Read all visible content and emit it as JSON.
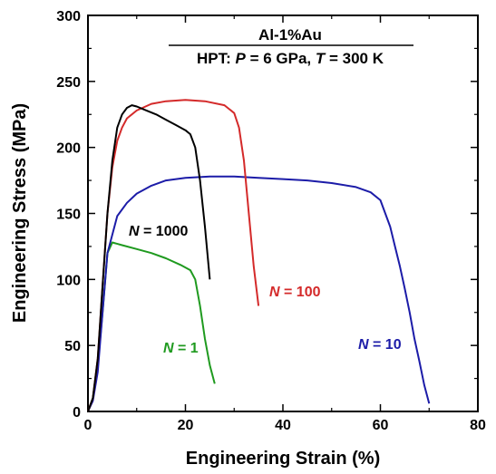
{
  "chart_data": {
    "type": "line",
    "title_line1": "Al-1%Au",
    "title_line2_parts": {
      "prefix": "HPT: ",
      "p_sym": "P",
      "p_val": " = 6 GPa, ",
      "t_sym": "T",
      "t_val": " = 300 K"
    },
    "xlabel": "Engineering Strain (%)",
    "ylabel": "Engineering Stress (MPa)",
    "xlim": [
      0,
      80
    ],
    "ylim": [
      0,
      300
    ],
    "xticks": [
      "0",
      "20",
      "40",
      "60",
      "80"
    ],
    "yticks": [
      "0",
      "50",
      "100",
      "150",
      "200",
      "250",
      "300"
    ],
    "grid": false,
    "series": [
      {
        "label_sym": "N",
        "label_val": " = 1",
        "color": "#1f9a1f",
        "x": [
          0,
          1,
          2,
          3,
          4,
          5,
          7,
          10,
          13,
          16,
          19,
          21,
          22,
          23,
          24,
          25,
          26
        ],
        "y": [
          0,
          10,
          35,
          75,
          120,
          128,
          126,
          123,
          120,
          116,
          111,
          107,
          100,
          80,
          55,
          35,
          21
        ]
      },
      {
        "label_sym": "N",
        "label_val": " = 10",
        "color": "#1c1ca8",
        "x": [
          0,
          1,
          2,
          3,
          4,
          6,
          8,
          10,
          13,
          16,
          20,
          25,
          30,
          35,
          40,
          45,
          50,
          55,
          58,
          60,
          61,
          62,
          63,
          64,
          65,
          66,
          67,
          68,
          69,
          70
        ],
        "y": [
          0,
          8,
          30,
          75,
          120,
          148,
          158,
          165,
          171,
          175,
          177,
          178,
          178,
          177,
          176,
          175,
          173,
          170,
          166,
          160,
          150,
          140,
          125,
          110,
          93,
          75,
          55,
          38,
          20,
          6
        ]
      },
      {
        "label_sym": "N",
        "label_val": " = 100",
        "color": "#d42a2a",
        "x": [
          0,
          1,
          2,
          3,
          4,
          5,
          6,
          7,
          8,
          10,
          13,
          16,
          20,
          24,
          28,
          30,
          31,
          32,
          33,
          34,
          35
        ],
        "y": [
          0,
          10,
          40,
          95,
          150,
          185,
          205,
          215,
          222,
          228,
          233,
          235,
          236,
          235,
          232,
          226,
          215,
          190,
          150,
          110,
          80
        ]
      },
      {
        "label_sym": "N",
        "label_val": " = 1000",
        "color": "#000000",
        "x": [
          0,
          1,
          2,
          3,
          4,
          5,
          6,
          7,
          8,
          9,
          10,
          12,
          14,
          16,
          18,
          20,
          21,
          22,
          23,
          24,
          25
        ],
        "y": [
          0,
          10,
          40,
          95,
          150,
          190,
          215,
          225,
          230,
          232,
          231,
          228,
          225,
          221,
          217,
          213,
          210,
          200,
          175,
          140,
          100
        ]
      }
    ]
  }
}
